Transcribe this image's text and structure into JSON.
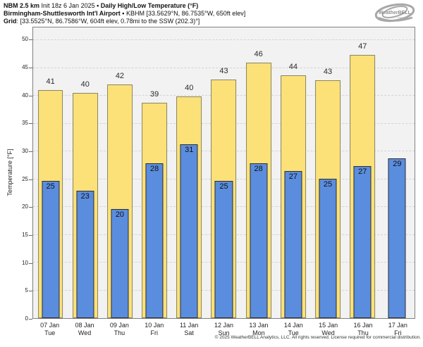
{
  "header": {
    "model": "NBM 2.5 km",
    "init": " Init 18z 6 Jan 2025 ",
    "title": "• Daily High/Low Temperature (°F)",
    "station": "Birmingham-Shuttlesworth Int'l Airport • ",
    "station_details": "KBHM [33.5629°N, 86.7535°W, 650ft elev]",
    "grid_label": "Grid",
    "grid_details": ": [33.5525°N, 86.7586°W, 604ft elev, 0.78mi to the SSW (202.3)°]"
  },
  "logo": {
    "name": "WeatherBELL",
    "sub": "Analytics LLC"
  },
  "chart_data": {
    "type": "bar",
    "title": "Daily High/Low Temperature (°F)",
    "ylabel": "Temperature [°F]",
    "ylim": [
      0,
      52.3
    ],
    "yticks": [
      0,
      5,
      10,
      15,
      20,
      25,
      30,
      35,
      40,
      45,
      50
    ],
    "grid": {
      "horizontal": true,
      "style": "dashed"
    },
    "legend": "none",
    "categories": [
      {
        "date": "07 Jan",
        "day": "Tue"
      },
      {
        "date": "08 Jan",
        "day": "Wed"
      },
      {
        "date": "09 Jan",
        "day": "Thu"
      },
      {
        "date": "10 Jan",
        "day": "Fri"
      },
      {
        "date": "11 Jan",
        "day": "Sat"
      },
      {
        "date": "12 Jan",
        "day": "Sun"
      },
      {
        "date": "13 Jan",
        "day": "Mon"
      },
      {
        "date": "14 Jan",
        "day": "Tue"
      },
      {
        "date": "15 Jan",
        "day": "Wed"
      },
      {
        "date": "16 Jan",
        "day": "Thu"
      },
      {
        "date": "17 Jan",
        "day": "Fri"
      }
    ],
    "series": [
      {
        "name": "High",
        "color": "#FBE178",
        "border": "#8A8565",
        "values": [
          41,
          40,
          42,
          39,
          40,
          43,
          46,
          44,
          43,
          47,
          null
        ],
        "values_precise": [
          41.0,
          40.5,
          42.0,
          38.7,
          39.9,
          42.9,
          46.0,
          43.7,
          42.8,
          47.4,
          null
        ]
      },
      {
        "name": "Low",
        "color": "#5B8DDE",
        "border": "#2E2E2E",
        "values": [
          25,
          23,
          20,
          28,
          31,
          25,
          28,
          27,
          25,
          27,
          29
        ],
        "values_precise": [
          24.7,
          22.9,
          19.6,
          27.9,
          31.3,
          24.7,
          27.9,
          26.5,
          25.1,
          27.3,
          28.8
        ]
      }
    ],
    "bar_width_frac": {
      "high": 0.73,
      "low": 0.51
    }
  },
  "colors": {
    "plot_bg": "#F2F2F2",
    "grid": "#D4D4D4",
    "spine": "#808080",
    "logo_gray": "#9A9A9A"
  },
  "footer": {
    "copyright": "© 2025 WeatherBELL Analytics, LLC. All rights reserved. License required for commercial distribution."
  }
}
